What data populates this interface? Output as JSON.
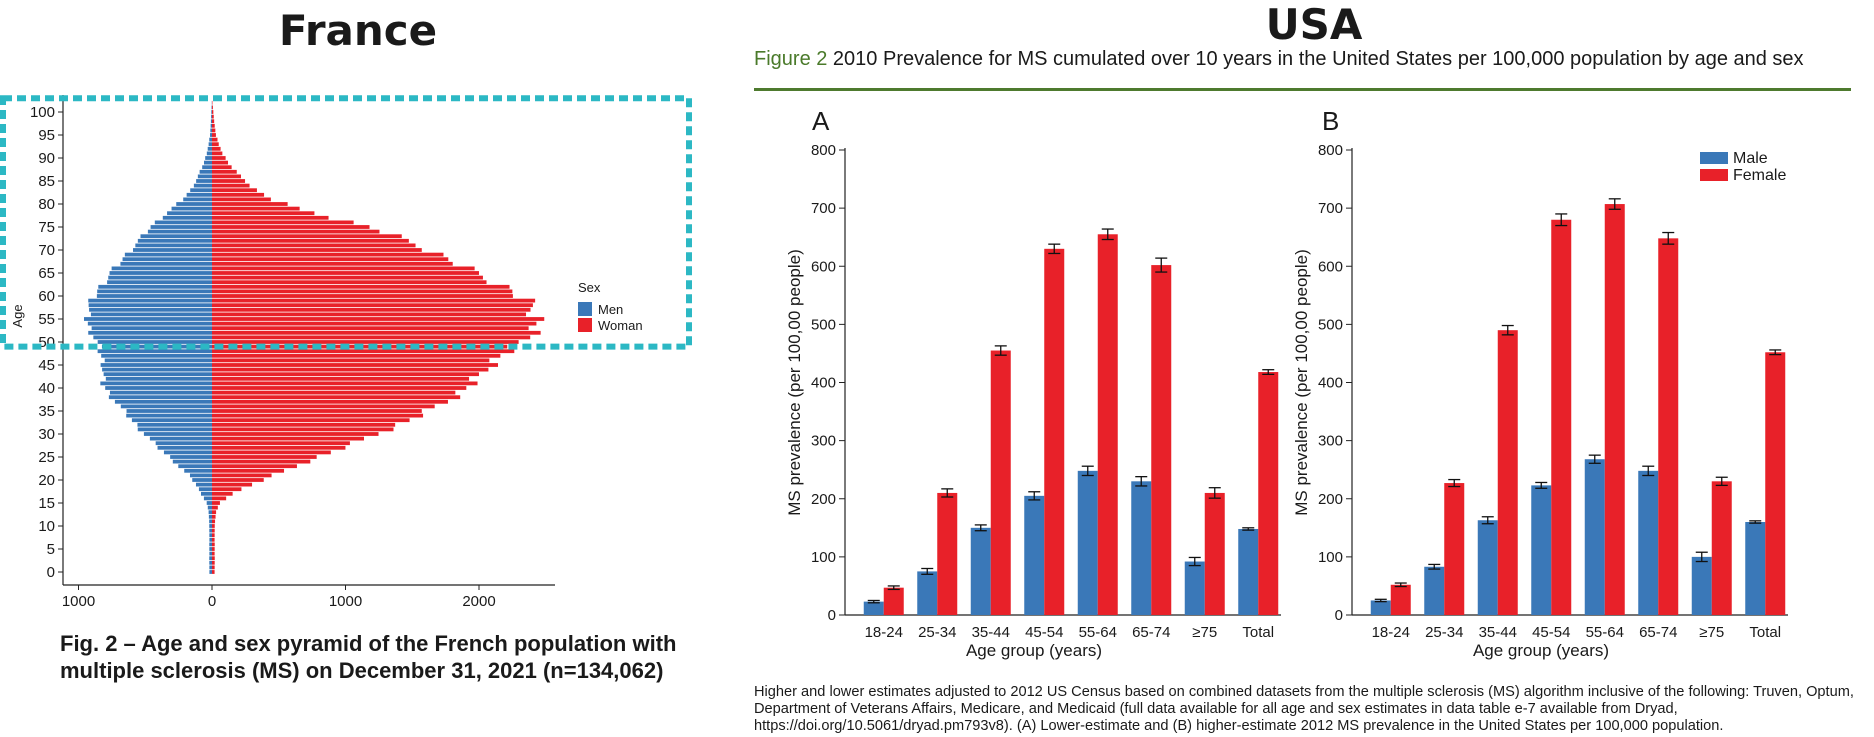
{
  "titles": {
    "france": "France",
    "usa": "USA"
  },
  "usa_caption": {
    "label": "Figure 2",
    "text": " 2010 Prevalence for MS cumulated over 10 years in the United States per 100,000 population by age and sex"
  },
  "france_caption": "Fig. 2 – Age and sex pyramid of the French population with multiple sclerosis (MS) on December 31, 2021 (n=134,062)",
  "usa_footnote": "Higher and lower estimates adjusted to 2012 US Census based on combined datasets from the multiple sclerosis (MS) algorithm inclusive of the following: Truven, Optum, Department of Veterans Affairs, Medicare, and Medicaid (full data available for all age and sex estimates in data table e-7 available from Dryad, https://doi.org/10.5061/dryad.pm793v8). (A) Lower-estimate and (B) higher-estimate 2012 MS prevalence in the United States per 100,000 population.",
  "colors": {
    "male": "#3a78b8",
    "female": "#e82129",
    "highlight": "#2cb8c4",
    "caption_green": "#4a7a2a"
  },
  "chart_data": [
    {
      "type": "bar",
      "orientation": "horizontal-pyramid",
      "ylabel": "Age",
      "y_ticks": [
        0,
        5,
        10,
        15,
        20,
        25,
        30,
        35,
        40,
        45,
        50,
        55,
        60,
        65,
        70,
        75,
        80,
        85,
        90,
        95,
        100
      ],
      "x_ticks": [
        "1000",
        "0",
        "1000",
        "2000"
      ],
      "xlim": [
        -1000,
        2500
      ],
      "legend": {
        "title": "Sex",
        "position": "right",
        "entries": [
          "Men",
          "Woman"
        ]
      },
      "highlight_box_ages": [
        49,
        103
      ],
      "age_points": [
        0,
        5,
        8,
        10,
        13,
        15,
        17,
        19,
        21,
        23,
        25,
        27,
        29,
        31,
        33,
        35,
        37,
        39,
        41,
        43,
        45,
        47,
        49,
        51,
        53,
        55,
        57,
        59,
        61,
        63,
        65,
        67,
        69,
        71,
        73,
        75,
        77,
        79,
        81,
        83,
        85,
        87,
        89,
        91,
        93,
        95,
        97,
        100,
        103
      ],
      "series": [
        {
          "name": "Men",
          "values": [
            -20,
            -20,
            -20,
            -20,
            -25,
            -40,
            -80,
            -120,
            -170,
            -250,
            -320,
            -400,
            -470,
            -540,
            -600,
            -660,
            -720,
            -780,
            -820,
            -820,
            -810,
            -830,
            -850,
            -880,
            -920,
            -940,
            -930,
            -900,
            -860,
            -810,
            -760,
            -700,
            -640,
            -580,
            -520,
            -460,
            -380,
            -300,
            -220,
            -160,
            -120,
            -90,
            -60,
            -40,
            -25,
            -15,
            -10,
            -5,
            0
          ]
        },
        {
          "name": "Woman",
          "values": [
            20,
            20,
            20,
            20,
            30,
            60,
            150,
            300,
            460,
            630,
            800,
            980,
            1150,
            1320,
            1480,
            1620,
            1750,
            1860,
            1950,
            2020,
            2080,
            2160,
            2280,
            2360,
            2420,
            2440,
            2410,
            2350,
            2250,
            2120,
            1980,
            1840,
            1700,
            1540,
            1380,
            1180,
            900,
            650,
            450,
            330,
            250,
            180,
            120,
            80,
            50,
            30,
            20,
            10,
            0
          ]
        }
      ]
    },
    {
      "type": "bar",
      "panel": "A",
      "categories": [
        "18-24",
        "25-34",
        "35-44",
        "45-54",
        "55-64",
        "65-74",
        "≥75",
        "Total"
      ],
      "xlabel": "Age group (years)",
      "ylabel": "MS prevalence (per 100,00 people)",
      "ylim": [
        0,
        800
      ],
      "y_ticks": [
        0,
        100,
        200,
        300,
        400,
        500,
        600,
        700,
        800
      ],
      "series": [
        {
          "name": "Male",
          "values": [
            23,
            75,
            150,
            205,
            248,
            230,
            92,
            148
          ],
          "errors": [
            2,
            5,
            5,
            7,
            8,
            8,
            7,
            2
          ]
        },
        {
          "name": "Female",
          "values": [
            47,
            210,
            455,
            630,
            655,
            602,
            210,
            418
          ],
          "errors": [
            3,
            7,
            8,
            8,
            9,
            12,
            9,
            4
          ]
        }
      ]
    },
    {
      "type": "bar",
      "panel": "B",
      "categories": [
        "18-24",
        "25-34",
        "35-44",
        "45-54",
        "55-64",
        "65-74",
        "≥75",
        "Total"
      ],
      "xlabel": "Age group (years)",
      "ylabel": "MS prevalence (per 100,00 people)",
      "ylim": [
        0,
        800
      ],
      "y_ticks": [
        0,
        100,
        200,
        300,
        400,
        500,
        600,
        700,
        800
      ],
      "legend": {
        "position": "top-right",
        "entries": [
          "Male",
          "Female"
        ]
      },
      "series": [
        {
          "name": "Male",
          "values": [
            25,
            83,
            163,
            223,
            268,
            248,
            100,
            160
          ],
          "errors": [
            2,
            4,
            6,
            5,
            7,
            8,
            8,
            2
          ]
        },
        {
          "name": "Female",
          "values": [
            52,
            227,
            490,
            680,
            707,
            648,
            230,
            452
          ],
          "errors": [
            3,
            6,
            8,
            10,
            9,
            10,
            7,
            4
          ]
        }
      ]
    }
  ]
}
